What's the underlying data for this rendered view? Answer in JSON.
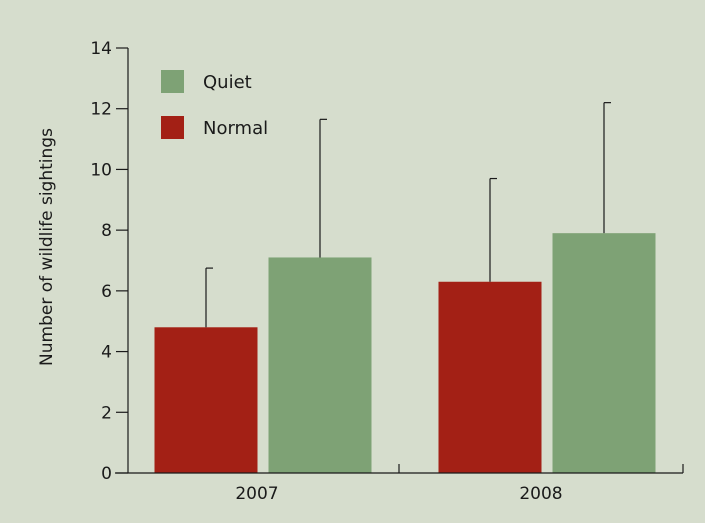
{
  "chart_data": {
    "type": "bar",
    "categories": [
      "2007",
      "2008"
    ],
    "series": [
      {
        "name": "Normal",
        "values": [
          4.8,
          6.3
        ],
        "errors": [
          1.95,
          3.4
        ]
      },
      {
        "name": "Quiet",
        "values": [
          7.1,
          7.9
        ],
        "errors": [
          4.55,
          4.3
        ]
      }
    ],
    "title": "",
    "xlabel": "",
    "ylabel": "Number of wildlife sightings",
    "ylim": [
      0,
      14
    ],
    "yticks": [
      0,
      2,
      4,
      6,
      8,
      10,
      12,
      14
    ],
    "grid": false,
    "legend": {
      "placement": "top-left",
      "order": [
        "Quiet",
        "Normal"
      ]
    },
    "colors": {
      "Normal": "#a32015",
      "Quiet": "#7ea275",
      "background": "#d6ddcd"
    }
  }
}
